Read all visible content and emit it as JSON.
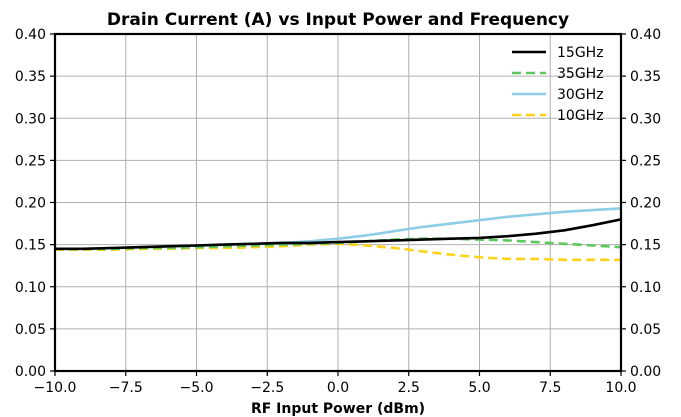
{
  "chart_data": {
    "type": "line",
    "title": "Drain Current (A) vs Input Power and Frequency",
    "xlabel": "RF Input Power (dBm)",
    "ylabel": "",
    "xlim": [
      -10,
      10
    ],
    "ylim": [
      0,
      0.4
    ],
    "grid": true,
    "legend_position": "top-right",
    "x_ticks": [
      "−10.0",
      "−7.5",
      "−5.0",
      "−2.5",
      "0.0",
      "2.5",
      "5.0",
      "7.5",
      "10.0"
    ],
    "y_ticks": [
      "0.00",
      "0.05",
      "0.10",
      "0.15",
      "0.20",
      "0.25",
      "0.30",
      "0.35",
      "0.40"
    ],
    "x": [
      -10,
      -9,
      -8,
      -7,
      -6,
      -5,
      -4,
      -3,
      -2,
      -1,
      0,
      1,
      2,
      3,
      4,
      5,
      6,
      7,
      8,
      9,
      10
    ],
    "series": [
      {
        "name": "15GHz",
        "color": "#000000",
        "style": "solid",
        "values": [
          0.145,
          0.145,
          0.146,
          0.147,
          0.148,
          0.149,
          0.15,
          0.151,
          0.152,
          0.152,
          0.153,
          0.154,
          0.155,
          0.156,
          0.157,
          0.158,
          0.16,
          0.163,
          0.167,
          0.173,
          0.18
        ]
      },
      {
        "name": "35GHz",
        "color": "#5dc85d",
        "style": "dashed",
        "values": [
          0.145,
          0.145,
          0.145,
          0.146,
          0.146,
          0.147,
          0.148,
          0.149,
          0.15,
          0.151,
          0.152,
          0.154,
          0.156,
          0.157,
          0.157,
          0.156,
          0.155,
          0.153,
          0.151,
          0.149,
          0.147
        ]
      },
      {
        "name": "30GHz",
        "color": "#8ecde6",
        "style": "solid",
        "values": [
          0.145,
          0.145,
          0.146,
          0.147,
          0.148,
          0.149,
          0.15,
          0.151,
          0.152,
          0.154,
          0.157,
          0.161,
          0.166,
          0.171,
          0.175,
          0.179,
          0.183,
          0.186,
          0.189,
          0.191,
          0.193
        ]
      },
      {
        "name": "10GHz",
        "color": "#ffd21a",
        "style": "dashed",
        "values": [
          0.144,
          0.144,
          0.144,
          0.145,
          0.145,
          0.146,
          0.146,
          0.147,
          0.148,
          0.15,
          0.151,
          0.149,
          0.146,
          0.142,
          0.138,
          0.135,
          0.133,
          0.133,
          0.132,
          0.132,
          0.132
        ]
      }
    ]
  }
}
